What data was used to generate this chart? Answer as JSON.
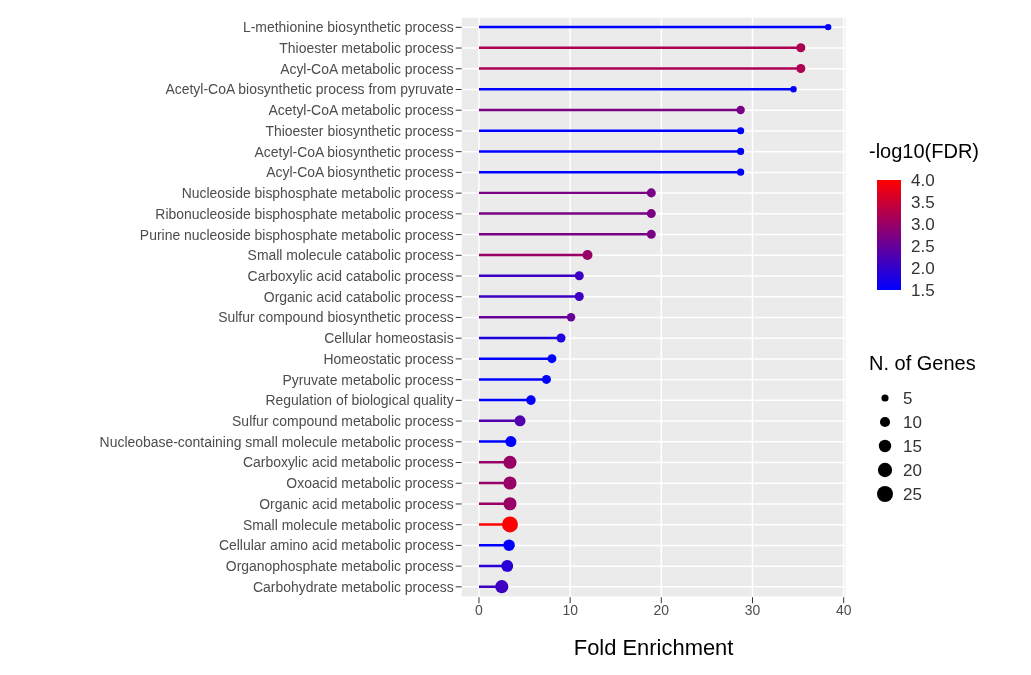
{
  "chart_data": {
    "type": "lollipop",
    "orientation": "horizontal",
    "xlabel": "Fold Enrichment",
    "clabel": "-log10(FDR)",
    "legend_title": "N. of Genes",
    "categories": [
      "L-methionine biosynthetic process",
      "Thioester metabolic process",
      "Acyl-CoA metabolic process",
      "Acetyl-CoA biosynthetic process from pyruvate",
      "Acetyl-CoA metabolic process",
      "Thioester biosynthetic process",
      "Acetyl-CoA biosynthetic process",
      "Acyl-CoA biosynthetic process",
      "Nucleoside bisphosphate metabolic process",
      "Ribonucleoside bisphosphate metabolic process",
      "Purine nucleoside bisphosphate metabolic process",
      "Small molecule catabolic process",
      "Carboxylic acid catabolic process",
      "Organic acid catabolic process",
      "Sulfur compound biosynthetic process",
      "Cellular homeostasis",
      "Homeostatic process",
      "Pyruvate metabolic process",
      "Regulation of biological quality",
      "Sulfur compound metabolic process",
      "Nucleobase-containing small molecule metabolic process",
      "Carboxylic acid metabolic process",
      "Oxoacid metabolic process",
      "Organic acid metabolic process",
      "Small molecule metabolic process",
      "Cellular amino acid metabolic process",
      "Organophosphate metabolic process",
      "Carbohydrate metabolic process"
    ],
    "values": [
      38.3,
      35.3,
      35.3,
      34.5,
      28.7,
      28.7,
      28.7,
      28.7,
      18.9,
      18.9,
      18.9,
      11.9,
      11.0,
      11.0,
      10.1,
      9.0,
      8.0,
      7.4,
      5.7,
      4.5,
      3.5,
      3.4,
      3.4,
      3.4,
      3.4,
      3.3,
      3.1,
      2.5
    ],
    "cvalues": [
      1.5,
      3.2,
      3.2,
      1.5,
      2.7,
      1.5,
      1.5,
      1.5,
      2.7,
      2.7,
      2.7,
      3.0,
      2.1,
      2.1,
      2.5,
      1.8,
      1.5,
      1.5,
      1.5,
      2.3,
      1.5,
      3.0,
      3.0,
      3.0,
      4.0,
      1.5,
      1.9,
      2.1
    ],
    "sizes": [
      4,
      8,
      8,
      4,
      7,
      5,
      5,
      5,
      8,
      8,
      8,
      10,
      8,
      8,
      7,
      8,
      8,
      8,
      9,
      12,
      12,
      17,
      17,
      17,
      25,
      13,
      14,
      17
    ],
    "size_legend": [
      5,
      10,
      15,
      20,
      25
    ],
    "clim": [
      1.5,
      4.0
    ],
    "cticks": [
      1.5,
      {
        "value": 2,
        "label": "2.0"
      },
      2.5,
      {
        "value": 3,
        "label": "3.0"
      },
      3.5,
      {
        "value": 4,
        "label": "4.0"
      }
    ],
    "xlim": [
      -1.9,
      40.2
    ],
    "xticks": [
      0,
      10,
      20,
      30,
      40
    ],
    "grid": true,
    "marker": "circle"
  }
}
